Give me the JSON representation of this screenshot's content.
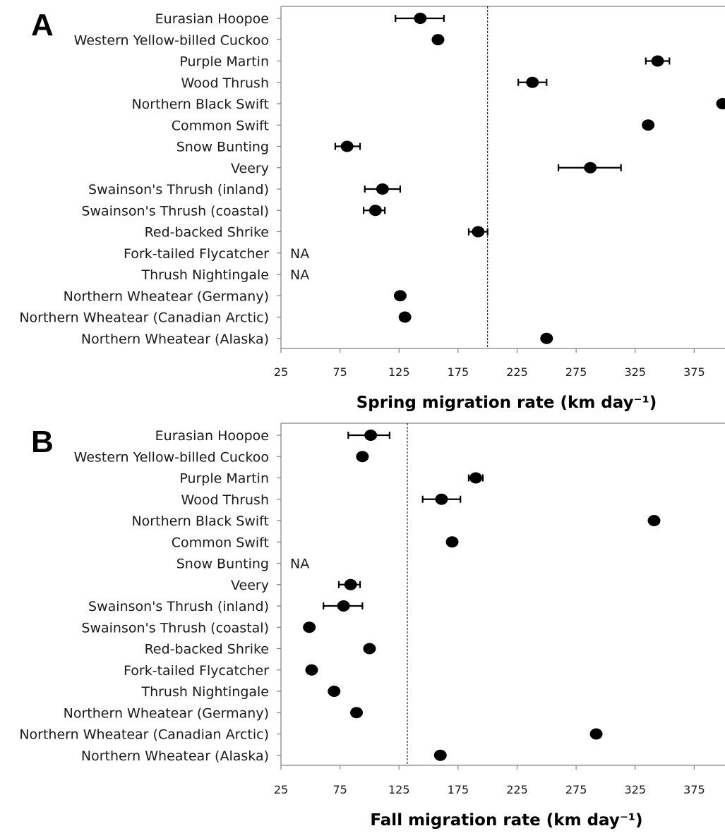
{
  "chart_data": [
    {
      "type": "scatter",
      "panel": "A",
      "xlabel": "Spring migration rate (km day⁻¹)",
      "xlim": [
        25,
        400
      ],
      "xticks": [
        25,
        75,
        125,
        175,
        225,
        275,
        325,
        375
      ],
      "reference_line": 200,
      "categories": [
        "Eurasian Hoopoe",
        "Western Yellow-billed Cuckoo",
        "Purple Martin",
        "Wood Thrush",
        "Northern Black Swift",
        "Common Swift",
        "Snow Bunting",
        "Veery",
        "Swainson's Thrush (inland)",
        "Swainson's Thrush (coastal)",
        "Red-backed Shrike",
        "Fork-tailed Flycatcher",
        "Thrush Nightingale",
        "Northern Wheatear (Germany)",
        "Northern Wheatear (Canadian Arctic)",
        "Northern Wheatear (Alaska)"
      ],
      "values": [
        143,
        158,
        344,
        238,
        399,
        336,
        81,
        287,
        111,
        105,
        192,
        null,
        null,
        126,
        130,
        250
      ],
      "error_low": [
        122,
        null,
        334,
        226,
        null,
        null,
        71,
        260,
        96,
        95,
        184,
        null,
        null,
        null,
        null,
        null
      ],
      "error_high": [
        163,
        null,
        354,
        250,
        null,
        null,
        92,
        313,
        126,
        113,
        200,
        null,
        null,
        null,
        null,
        null
      ],
      "missing_text": "NA"
    },
    {
      "type": "scatter",
      "panel": "B",
      "xlabel": "Fall migration rate (km day⁻¹)",
      "xlim": [
        25,
        400
      ],
      "xticks": [
        25,
        75,
        125,
        175,
        225,
        275,
        325,
        375
      ],
      "reference_line": 132,
      "categories": [
        "Eurasian Hoopoe",
        "Western Yellow-billed Cuckoo",
        "Purple Martin",
        "Wood Thrush",
        "Northern Black Swift",
        "Common Swift",
        "Snow Bunting",
        "Veery",
        "Swainson's Thrush (inland)",
        "Swainson's Thrush (coastal)",
        "Red-backed Shrike",
        "Fork-tailed Flycatcher",
        "Thrush Nightingale",
        "Northern Wheatear (Germany)",
        "Northern Wheatear (Canadian Arctic)",
        "Northern Wheatear (Alaska)"
      ],
      "values": [
        101,
        94,
        190,
        161,
        341,
        170,
        null,
        84,
        78,
        49,
        100,
        51,
        70,
        89,
        292,
        160
      ],
      "error_low": [
        82,
        null,
        184,
        145,
        null,
        null,
        null,
        74,
        61,
        null,
        null,
        null,
        null,
        null,
        null,
        null
      ],
      "error_high": [
        117,
        null,
        196,
        177,
        null,
        null,
        null,
        92,
        94,
        null,
        null,
        null,
        null,
        null,
        null,
        null
      ],
      "missing_text": "NA"
    }
  ],
  "colors": {
    "point": "#000000",
    "axis": "#808080",
    "text": "#1a1a1a"
  }
}
